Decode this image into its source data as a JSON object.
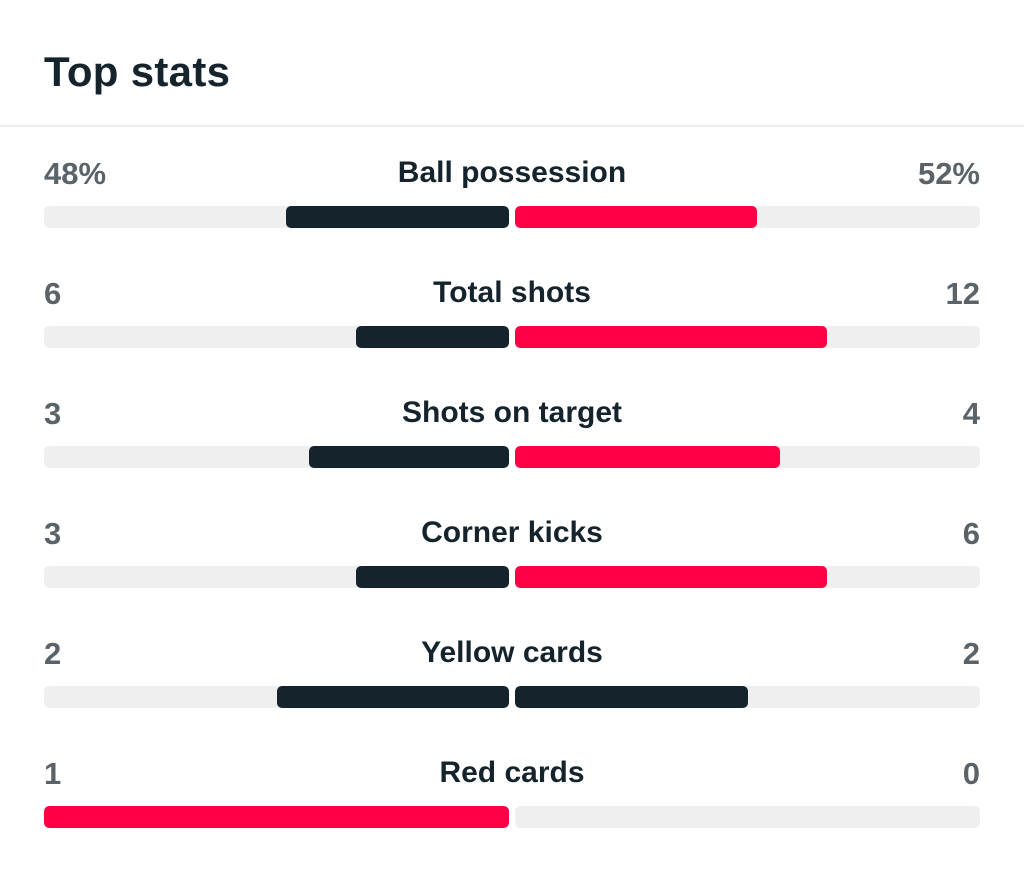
{
  "title": "Top stats",
  "colors": {
    "home": "#15242c",
    "away": "#ff0046",
    "track": "#efefef",
    "muted_text": "#5b6368"
  },
  "stats": [
    {
      "label": "Ball possession",
      "home": "48%",
      "away": "52%",
      "home_share": 0.48,
      "away_share": 0.52,
      "home_color": "#15242c",
      "away_color": "#ff0046"
    },
    {
      "label": "Total shots",
      "home": "6",
      "away": "12",
      "home_share": 0.33,
      "away_share": 0.67,
      "home_color": "#15242c",
      "away_color": "#ff0046"
    },
    {
      "label": "Shots on target",
      "home": "3",
      "away": "4",
      "home_share": 0.43,
      "away_share": 0.57,
      "home_color": "#15242c",
      "away_color": "#ff0046"
    },
    {
      "label": "Corner kicks",
      "home": "3",
      "away": "6",
      "home_share": 0.33,
      "away_share": 0.67,
      "home_color": "#15242c",
      "away_color": "#ff0046"
    },
    {
      "label": "Yellow cards",
      "home": "2",
      "away": "2",
      "home_share": 0.5,
      "away_share": 0.5,
      "home_color": "#15242c",
      "away_color": "#15242c"
    },
    {
      "label": "Red cards",
      "home": "1",
      "away": "0",
      "home_share": 1.0,
      "away_share": 0.0,
      "home_color": "#ff0046",
      "away_color": "#15242c"
    }
  ]
}
